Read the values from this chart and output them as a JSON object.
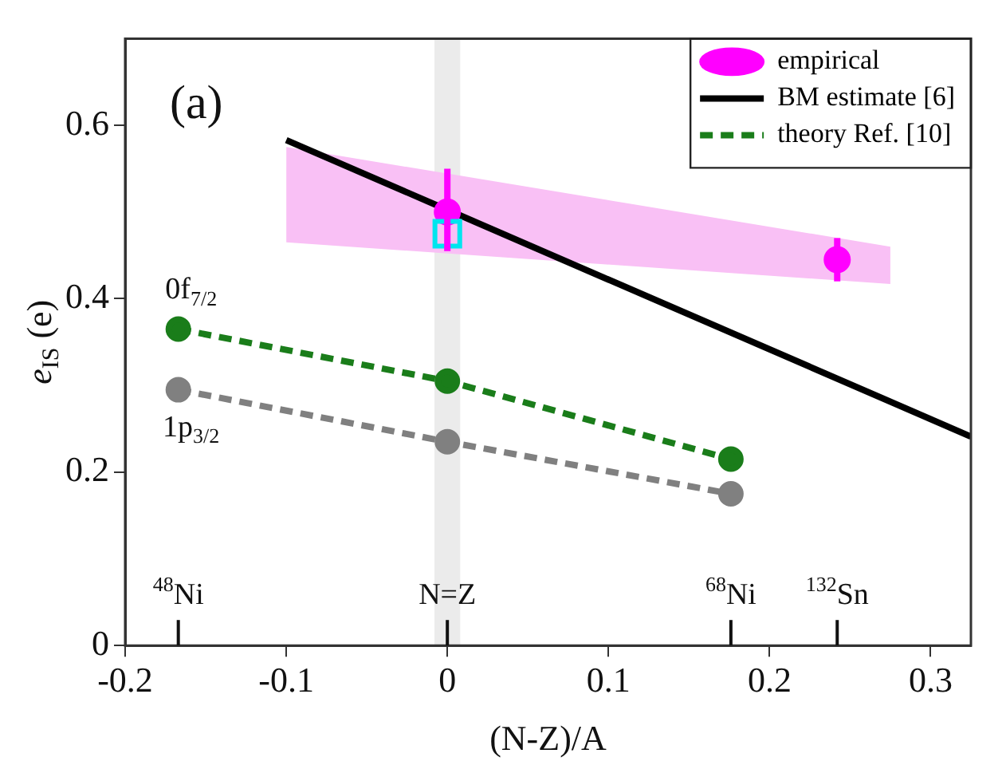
{
  "chart_data": {
    "type": "scatter",
    "xlabel": "(N-Z)/A",
    "ylabel": "e$_{IS}$ (e)",
    "xlim": [
      -0.2,
      0.325
    ],
    "xticks": [
      -0.2,
      -0.1,
      0,
      0.1,
      0.2,
      0.3
    ],
    "ylim": [
      0,
      0.7
    ],
    "yticks": [
      0,
      0.2,
      0.4,
      0.6
    ],
    "grid": false,
    "legend": "top right",
    "bands": [
      {
        "axis": "x",
        "from": -0.008,
        "to": 0.008,
        "color": "#ebebeb",
        "label": "N=Z"
      }
    ],
    "ref_lines": [
      {
        "axis": "x",
        "value": -0.167,
        "label": "$^{48}$Ni"
      },
      {
        "axis": "x",
        "value": 0.176,
        "label": "$^{68}$Ni"
      },
      {
        "axis": "x",
        "value": 0.242,
        "label": "$^{132}$Sn"
      }
    ],
    "series": [
      {
        "type": "area",
        "color": "#f9c0f5",
        "x": [
          -0.1,
          0.275
        ],
        "values": [
          null,
          null
        ],
        "lower": [
          0.465,
          0.417
        ],
        "upper": [
          0.575,
          0.46
        ]
      },
      {
        "type": "scatter",
        "name": "empirical",
        "color": "#ff00ff",
        "x": [
          0,
          0.242
        ],
        "values": [
          0.5,
          0.445
        ],
        "errors": [
          [
            0.455,
            0.55
          ],
          [
            0.42,
            0.47
          ]
        ],
        "marker": "circle"
      },
      {
        "type": "scatter",
        "color": "#00e5ee",
        "x": [
          0
        ],
        "values": [
          0.475
        ],
        "marker": "square"
      },
      {
        "type": "line",
        "name": "BM estimate [6]",
        "color": "#000000",
        "x": [
          -0.1,
          0.325
        ],
        "values": [
          0.583,
          0.241
        ],
        "marker": "none",
        "line_style": "solid"
      },
      {
        "type": "line",
        "name": "theory Ref. [10]",
        "color": "#1a7d1a",
        "x": [
          -0.167,
          0,
          0.176
        ],
        "values": [
          0.365,
          0.305,
          0.215
        ],
        "marker": "circle",
        "line_style": "dashed"
      },
      {
        "type": "line",
        "color": "#808080",
        "x": [
          -0.167,
          0,
          0.176
        ],
        "values": [
          0.295,
          0.235,
          0.175
        ],
        "marker": "circle",
        "line_style": "dashed"
      }
    ],
    "annotations": [
      "(a)",
      {
        "text": "0f$_{7/2}$",
        "x": -0.167,
        "y": 0.365
      },
      {
        "text": "1p$_{3/2}$",
        "x": -0.167,
        "y": 0.295
      }
    ]
  }
}
